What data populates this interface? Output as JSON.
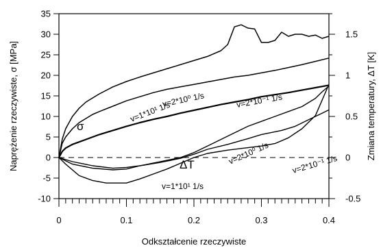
{
  "chart_data": {
    "type": "line",
    "xlabel": "Odkształcenie rzeczywiste",
    "ylabel_left": "Naprężenie rzeczywiste, σ  [MPa]",
    "ylabel_right": "Zmiana temperatury, ΔT  [K]",
    "xlim": [
      0,
      0.4
    ],
    "ylim_left": [
      -10,
      35
    ],
    "ylim_right": [
      -0.5,
      1.75
    ],
    "x_ticks": [
      0,
      0.1,
      0.2,
      0.3,
      0.4
    ],
    "x_tick_labels": [
      "0",
      "0.1",
      "0.2",
      "0.3",
      "0.4"
    ],
    "y_left_ticks": [
      -10,
      -5,
      0,
      5,
      10,
      15,
      20,
      25,
      30,
      35
    ],
    "y_left_tick_labels": [
      "-10",
      "-5",
      "0",
      "5",
      "10",
      "15",
      "20",
      "25",
      "30",
      "35"
    ],
    "y_right_ticks": [
      -0.5,
      0,
      0.5,
      1,
      1.5
    ],
    "y_right_tick_labels": [
      "-0.5",
      "0",
      "0.5",
      "1",
      "1.5"
    ],
    "grid": false,
    "group_labels": {
      "stress": "σ",
      "temperature": "ΔT"
    },
    "stress_series": [
      {
        "name": "v=1*10¹ 1/s",
        "line_width": 1.5,
        "points": [
          [
            0,
            0
          ],
          [
            0.005,
            4.5
          ],
          [
            0.01,
            7
          ],
          [
            0.02,
            10
          ],
          [
            0.03,
            12
          ],
          [
            0.04,
            13.5
          ],
          [
            0.06,
            15.5
          ],
          [
            0.08,
            17.2
          ],
          [
            0.1,
            18.5
          ],
          [
            0.12,
            19.6
          ],
          [
            0.14,
            20.6
          ],
          [
            0.16,
            21.6
          ],
          [
            0.18,
            22.6
          ],
          [
            0.2,
            23.6
          ],
          [
            0.22,
            24.6
          ],
          [
            0.24,
            26
          ],
          [
            0.25,
            27.5
          ],
          [
            0.26,
            31.8
          ],
          [
            0.27,
            32.3
          ],
          [
            0.28,
            31.5
          ],
          [
            0.29,
            31.3
          ],
          [
            0.3,
            28
          ],
          [
            0.31,
            28
          ],
          [
            0.32,
            28.5
          ],
          [
            0.33,
            30.5
          ],
          [
            0.34,
            29.5
          ],
          [
            0.35,
            30
          ],
          [
            0.36,
            30
          ],
          [
            0.37,
            29.5
          ],
          [
            0.38,
            29.8
          ],
          [
            0.39,
            29
          ],
          [
            0.4,
            29.5
          ]
        ]
      },
      {
        "name": "v=2*10⁰ 1/s",
        "line_width": 1.5,
        "points": [
          [
            0,
            0
          ],
          [
            0.005,
            3.5
          ],
          [
            0.01,
            5
          ],
          [
            0.02,
            7
          ],
          [
            0.03,
            8.5
          ],
          [
            0.04,
            9.5
          ],
          [
            0.05,
            10.5
          ],
          [
            0.06,
            11.2
          ],
          [
            0.08,
            12.5
          ],
          [
            0.1,
            13.8
          ],
          [
            0.12,
            14.8
          ],
          [
            0.14,
            15.8
          ],
          [
            0.16,
            16.6
          ],
          [
            0.18,
            17.2
          ],
          [
            0.2,
            17.8
          ],
          [
            0.22,
            18.4
          ],
          [
            0.24,
            19
          ],
          [
            0.26,
            19.6
          ],
          [
            0.28,
            20
          ],
          [
            0.3,
            20.6
          ],
          [
            0.32,
            21.2
          ],
          [
            0.34,
            21.9
          ],
          [
            0.36,
            22.6
          ],
          [
            0.38,
            23.4
          ],
          [
            0.4,
            24.2
          ]
        ]
      },
      {
        "name": "v=2*10⁻¹ 1/s",
        "line_width": 2.2,
        "points": [
          [
            0,
            0
          ],
          [
            0.005,
            1.5
          ],
          [
            0.01,
            2.3
          ],
          [
            0.02,
            3.2
          ],
          [
            0.04,
            4.4
          ],
          [
            0.06,
            5.6
          ],
          [
            0.08,
            6.6
          ],
          [
            0.1,
            7.6
          ],
          [
            0.12,
            8.5
          ],
          [
            0.14,
            9.3
          ],
          [
            0.16,
            10
          ],
          [
            0.18,
            10.8
          ],
          [
            0.2,
            11.5
          ],
          [
            0.22,
            12.2
          ],
          [
            0.24,
            12.9
          ],
          [
            0.26,
            13.5
          ],
          [
            0.28,
            14.1
          ],
          [
            0.3,
            14.8
          ],
          [
            0.32,
            15.3
          ],
          [
            0.34,
            15.8
          ],
          [
            0.36,
            16.4
          ],
          [
            0.38,
            17
          ],
          [
            0.4,
            17.6
          ]
        ]
      }
    ],
    "temperature_series": [
      {
        "name": "v=2*10⁰ 1/s",
        "line_width": 1.4,
        "points": [
          [
            0,
            0
          ],
          [
            0.02,
            -0.08
          ],
          [
            0.05,
            -0.13
          ],
          [
            0.08,
            -0.15
          ],
          [
            0.1,
            -0.14
          ],
          [
            0.12,
            -0.1
          ],
          [
            0.15,
            -0.05
          ],
          [
            0.18,
            0
          ],
          [
            0.2,
            0.06
          ],
          [
            0.22,
            0.14
          ],
          [
            0.25,
            0.26
          ],
          [
            0.28,
            0.38
          ],
          [
            0.3,
            0.44
          ],
          [
            0.32,
            0.5
          ],
          [
            0.34,
            0.56
          ],
          [
            0.36,
            0.62
          ],
          [
            0.38,
            0.72
          ],
          [
            0.39,
            0.8
          ],
          [
            0.4,
            0.87
          ]
        ]
      },
      {
        "name": "v=2*10⁻¹ 1/s",
        "line_width": 1.4,
        "points": [
          [
            0,
            0
          ],
          [
            0.01,
            -0.08
          ],
          [
            0.03,
            -0.22
          ],
          [
            0.05,
            -0.28
          ],
          [
            0.07,
            -0.31
          ],
          [
            0.1,
            -0.31
          ],
          [
            0.12,
            -0.26
          ],
          [
            0.14,
            -0.2
          ],
          [
            0.16,
            -0.14
          ],
          [
            0.18,
            -0.07
          ],
          [
            0.2,
            0
          ],
          [
            0.22,
            0.05
          ],
          [
            0.25,
            0.09
          ],
          [
            0.28,
            0.12
          ],
          [
            0.3,
            0.14
          ],
          [
            0.32,
            0.17
          ],
          [
            0.34,
            0.24
          ],
          [
            0.36,
            0.35
          ],
          [
            0.38,
            0.51
          ],
          [
            0.4,
            0.89
          ]
        ]
      },
      {
        "name": "v=1*10¹ 1/s",
        "line_width": 1.4,
        "points": [
          [
            0,
            0
          ],
          [
            0.02,
            -0.05
          ],
          [
            0.05,
            -0.1
          ],
          [
            0.08,
            -0.13
          ],
          [
            0.1,
            -0.12
          ],
          [
            0.12,
            -0.1
          ],
          [
            0.15,
            -0.06
          ],
          [
            0.18,
            -0.01
          ],
          [
            0.2,
            0.04
          ],
          [
            0.22,
            0.1
          ],
          [
            0.25,
            0.16
          ],
          [
            0.28,
            0.23
          ],
          [
            0.3,
            0.28
          ],
          [
            0.33,
            0.33
          ],
          [
            0.35,
            0.38
          ],
          [
            0.37,
            0.46
          ],
          [
            0.39,
            0.54
          ],
          [
            0.4,
            0.58
          ]
        ]
      }
    ],
    "zero_reference_line": {
      "value": 0,
      "style": "dashed"
    }
  }
}
